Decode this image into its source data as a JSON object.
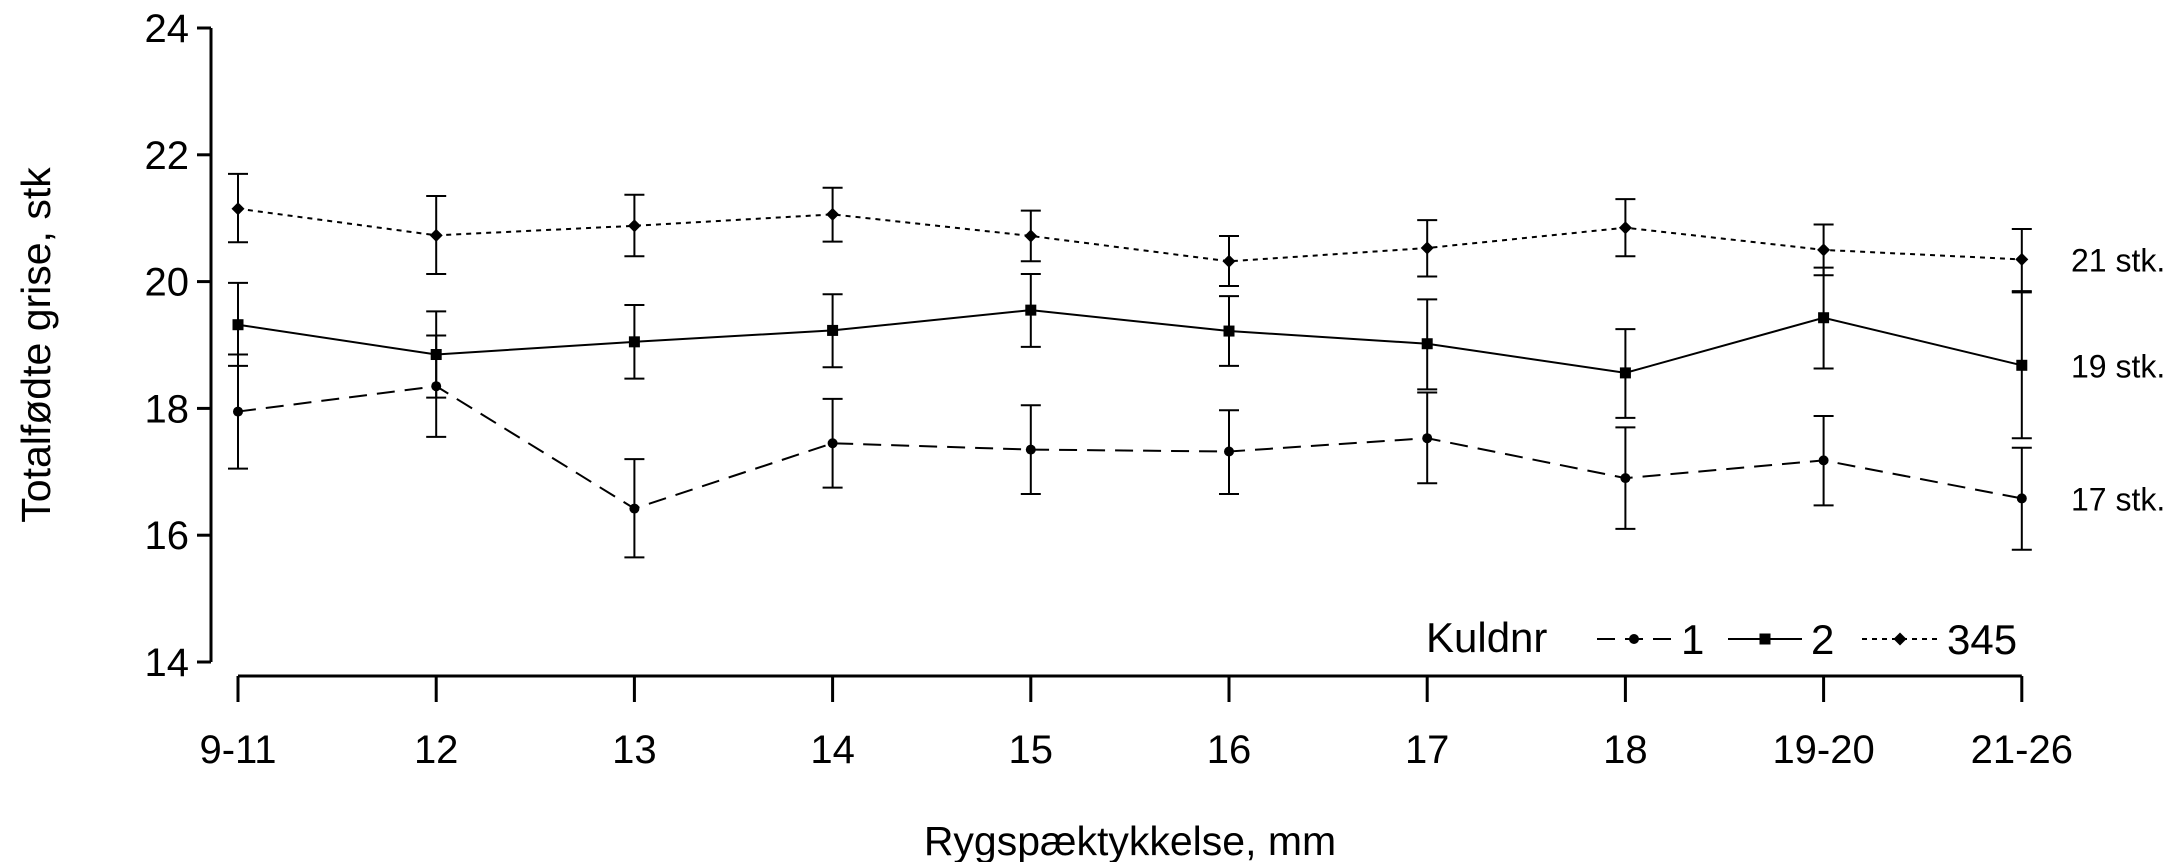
{
  "chart_data": {
    "type": "line",
    "xlabel": "Rygspæktykkelse, mm",
    "ylabel": "Totalfødte grise, stk",
    "ylim": [
      14,
      24
    ],
    "yticks": [
      14,
      16,
      18,
      20,
      22,
      24
    ],
    "categories": [
      "9-11",
      "12",
      "13",
      "14",
      "15",
      "16",
      "17",
      "18",
      "19-20",
      "21-26"
    ],
    "legend": {
      "title": "Kuldnr",
      "placement": "bottom-right"
    },
    "series": [
      {
        "name": "1",
        "line_style": "dashed",
        "marker": "circle",
        "end_label": "17 stk.",
        "values": [
          17.95,
          18.35,
          16.42,
          17.45,
          17.35,
          17.32,
          17.53,
          16.9,
          17.18,
          16.58
        ],
        "lower": [
          17.05,
          17.55,
          15.65,
          16.75,
          16.65,
          16.65,
          16.82,
          16.1,
          16.47,
          15.77
        ],
        "upper": [
          18.85,
          19.15,
          17.2,
          18.15,
          18.05,
          17.97,
          18.25,
          17.7,
          17.88,
          17.38
        ]
      },
      {
        "name": "2",
        "line_style": "solid",
        "marker": "square",
        "end_label": "19 stk.",
        "values": [
          19.32,
          18.85,
          19.05,
          19.23,
          19.55,
          19.22,
          19.02,
          18.56,
          19.43,
          18.68
        ],
        "lower": [
          18.67,
          18.17,
          18.47,
          18.65,
          18.97,
          18.67,
          18.3,
          17.85,
          18.63,
          17.53
        ],
        "upper": [
          19.98,
          19.53,
          19.63,
          19.8,
          20.12,
          19.77,
          19.72,
          19.25,
          20.22,
          19.83
        ]
      },
      {
        "name": "345",
        "line_style": "dotted",
        "marker": "diamond",
        "end_label": "21 stk.",
        "values": [
          21.15,
          20.73,
          20.88,
          21.06,
          20.72,
          20.32,
          20.53,
          20.85,
          20.5,
          20.35
        ],
        "lower": [
          20.62,
          20.12,
          20.4,
          20.63,
          20.32,
          19.93,
          20.08,
          20.4,
          20.1,
          19.85
        ],
        "upper": [
          21.7,
          21.35,
          21.37,
          21.48,
          21.12,
          20.72,
          20.97,
          21.3,
          20.9,
          20.83
        ]
      }
    ]
  }
}
